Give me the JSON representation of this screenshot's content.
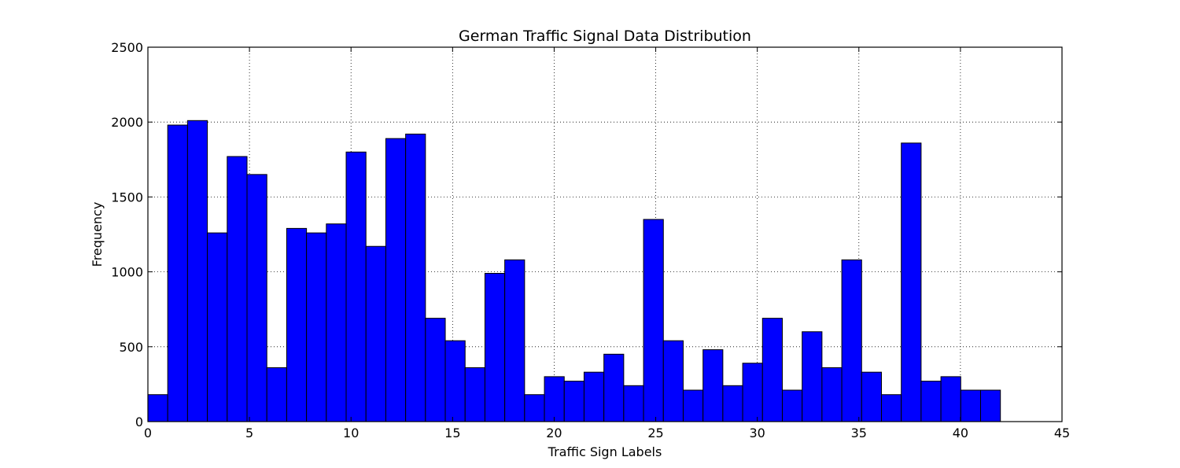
{
  "chart_data": {
    "type": "bar",
    "title": "German Traffic Signal Data Distribution",
    "xlabel": "Traffic Sign Labels",
    "ylabel": "Frequency",
    "xlim": [
      0,
      45
    ],
    "ylim": [
      0,
      2500
    ],
    "x_ticks": [
      "0",
      "5",
      "10",
      "15",
      "20",
      "25",
      "30",
      "35",
      "40",
      "45"
    ],
    "y_ticks": [
      "0",
      "500",
      "1000",
      "1500",
      "2000",
      "2500"
    ],
    "grid": true,
    "bar_color": "#0000ff",
    "edge_color": "#000000",
    "bin_width": 0.976,
    "categories": [
      0,
      1,
      2,
      3,
      4,
      5,
      6,
      7,
      8,
      9,
      10,
      11,
      12,
      13,
      14,
      15,
      16,
      17,
      18,
      19,
      20,
      21,
      22,
      23,
      24,
      25,
      26,
      27,
      28,
      29,
      30,
      31,
      32,
      33,
      34,
      35,
      36,
      37,
      38,
      39,
      40,
      41,
      42
    ],
    "values": [
      180,
      1980,
      2010,
      1260,
      1770,
      1650,
      360,
      1290,
      1260,
      1320,
      1800,
      1170,
      1890,
      1920,
      690,
      540,
      360,
      990,
      1080,
      180,
      300,
      270,
      330,
      450,
      240,
      1350,
      540,
      210,
      480,
      240,
      390,
      690,
      210,
      600,
      360,
      1080,
      330,
      180,
      1860,
      270,
      300,
      210,
      210
    ]
  }
}
